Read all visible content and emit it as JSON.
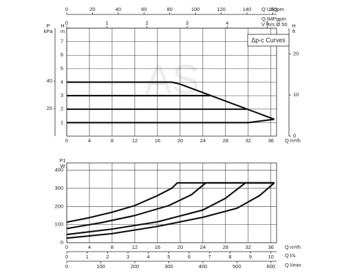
{
  "chart_data": [
    {
      "type": "line",
      "legend_box": "Δp-c Curves",
      "watermark": "AS",
      "x_label": "Q m³/h",
      "xlim": [
        0,
        37
      ],
      "xticks": [
        0,
        4,
        8,
        12,
        16,
        20,
        24,
        28,
        32,
        36
      ],
      "y_label": "H",
      "y_unit": "m",
      "ylim": [
        0,
        8
      ],
      "yticks": [
        1,
        2,
        3,
        4,
        5,
        6,
        7
      ],
      "y3_label": "P",
      "y3_unit": "kPa",
      "y3lim": [
        0,
        78.5
      ],
      "y3ticks": [
        20,
        40
      ],
      "y2_label": "H",
      "y2_unit": "ft",
      "y2lim": [
        0,
        26.25
      ],
      "y2ticks": [
        0,
        10,
        20
      ],
      "top_axes": [
        {
          "label": "Q USgpm",
          "lim": [
            0,
            163
          ],
          "ticks": [
            0,
            20,
            40,
            60,
            80,
            100,
            120,
            140,
            160
          ]
        },
        {
          "label": "Q IMPgpm"
        },
        {
          "label": "V m/s Ø 50",
          "lim": [
            0,
            5.23
          ],
          "ticks": [
            0,
            1,
            2,
            3,
            4,
            5
          ]
        }
      ],
      "grid": true,
      "series": [
        {
          "color": "#111111",
          "x": [
            0,
            18.5,
            20,
            36.6
          ],
          "values": [
            4,
            4,
            3.85,
            1.25
          ]
        },
        {
          "color": "#111111",
          "x": [
            0,
            25.3
          ],
          "values": [
            3,
            3
          ]
        },
        {
          "color": "#111111",
          "x": [
            0,
            31.7
          ],
          "values": [
            2,
            2
          ]
        },
        {
          "color": "#111111",
          "x": [
            0,
            32,
            36.6
          ],
          "values": [
            1,
            1,
            1.25
          ]
        }
      ]
    },
    {
      "type": "line",
      "x_label": "Q m³/h",
      "xlim": [
        0,
        37
      ],
      "xticks": [
        0,
        4,
        8,
        12,
        16,
        20,
        24,
        28,
        32,
        36
      ],
      "y_label": "P1",
      "y_unit": "W",
      "ylim": [
        0,
        440
      ],
      "yticks": [
        0,
        100,
        200,
        300,
        400
      ],
      "bottom_axes": [
        {
          "label": "Q l/s",
          "lim": [
            0,
            10.28
          ],
          "ticks": [
            0,
            1,
            2,
            3,
            4,
            5,
            6,
            7,
            8,
            9,
            10
          ]
        },
        {
          "label": "Q l/min",
          "lim": [
            0,
            616.7
          ],
          "ticks": [
            0,
            100,
            200,
            300,
            400,
            500,
            600
          ]
        }
      ],
      "grid": true,
      "series": [
        {
          "color": "#111111",
          "x": [
            0,
            4,
            8,
            12,
            16,
            18.5,
            19.5,
            36.6
          ],
          "values": [
            113,
            138,
            168,
            205,
            260,
            300,
            330,
            330
          ]
        },
        {
          "color": "#111111",
          "x": [
            0,
            6,
            12,
            18,
            22,
            24.5,
            36.6
          ],
          "values": [
            78,
            110,
            150,
            205,
            265,
            330,
            330
          ]
        },
        {
          "color": "#111111",
          "x": [
            0,
            8,
            16,
            24,
            28,
            31.5,
            36.6
          ],
          "values": [
            45,
            75,
            115,
            180,
            245,
            330,
            330
          ]
        },
        {
          "color": "#111111",
          "x": [
            0,
            8,
            16,
            24,
            30,
            34,
            36.6
          ],
          "values": [
            25,
            50,
            90,
            140,
            190,
            260,
            330
          ]
        }
      ]
    }
  ]
}
